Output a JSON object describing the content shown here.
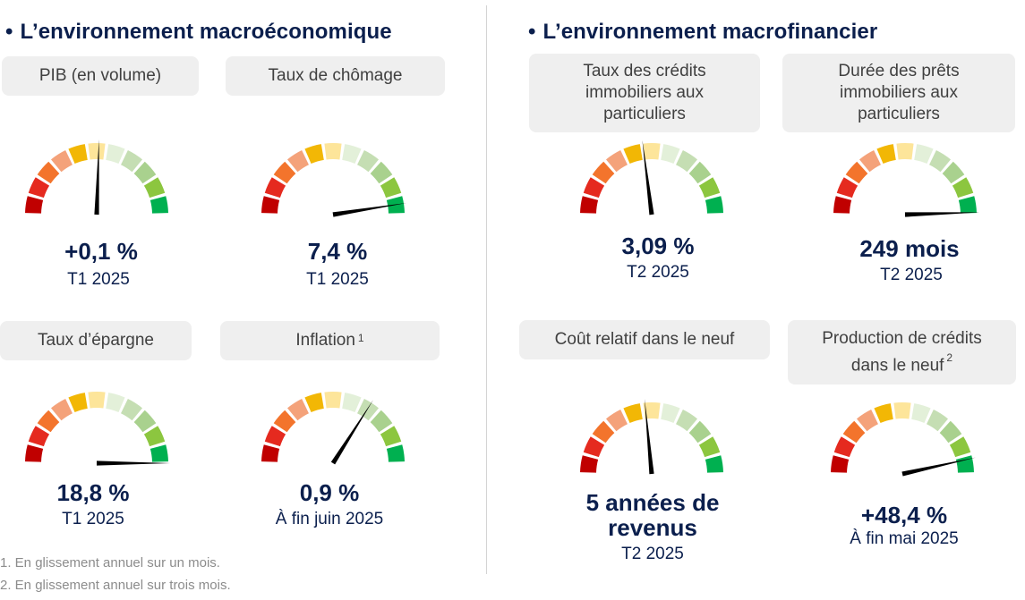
{
  "sections": {
    "macro_title": "L’environnement macroéconomique",
    "macrofin_title": "L’environnement macrofinancier",
    "bullet": "•"
  },
  "segment_colors": [
    "#c00000",
    "#e52a1f",
    "#f3742c",
    "#f4a27a",
    "#f2b705",
    "#fde59a",
    "#e3f0d9",
    "#c5deb3",
    "#a9d18e",
    "#8cc63f",
    "#00b050"
  ],
  "indicators": [
    {
      "id": "pib",
      "label": "PIB (en volume)",
      "superscript": "",
      "value": "+0,1 %",
      "period": "T1 2025",
      "level": 0.51
    },
    {
      "id": "chomage",
      "label": "Taux de chômage",
      "superscript": "",
      "value": "7,4 %",
      "period": "T1 2025",
      "level": 0.95
    },
    {
      "id": "epargne",
      "label": "Taux d’épargne",
      "superscript": "",
      "value": "18,8 %",
      "period": "T1 2025",
      "level": 1.0
    },
    {
      "id": "inflation",
      "label": "Inflation",
      "superscript": "1",
      "value": "0,9 %",
      "period": "À fin juin 2025",
      "level": 0.68
    },
    {
      "id": "taux_credits",
      "label": "Taux des crédits immobiliers aux particuliers",
      "superscript": "",
      "value": "3,09 %",
      "period": "T2 2025",
      "level": 0.46
    },
    {
      "id": "duree_prets",
      "label": "Durée des prêts immobiliers aux particuliers",
      "superscript": "",
      "value": "249 mois",
      "period": "T2 2025",
      "level": 0.99
    },
    {
      "id": "cout_relatif",
      "label": "Coût relatif dans le neuf",
      "superscript": "",
      "value": "5 années de revenus",
      "period": "T2 2025",
      "level": 0.47
    },
    {
      "id": "production",
      "label": "Production de crédits dans le neuf",
      "superscript": "2",
      "value": "+48,4 %",
      "period": "À fin mai 2025",
      "level": 0.93
    }
  ],
  "footnotes": [
    "1. En glissement annuel sur un mois.",
    "2. En glissement annuel sur trois mois."
  ]
}
